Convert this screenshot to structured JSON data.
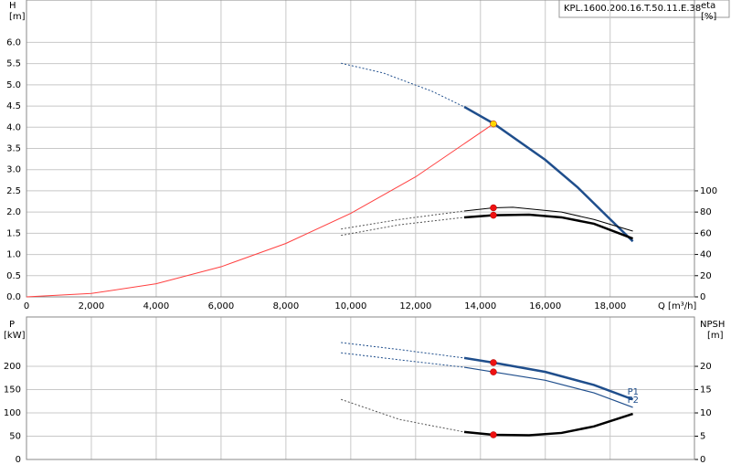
{
  "chart_data": [
    {
      "type": "line",
      "model": "KPL.1600.200.16.T.50.11.E.38",
      "ylabel": "H",
      "yunit": "[m]",
      "y2label": "eta",
      "y2unit": "[%]",
      "xlabel": "Q [m³/h]",
      "xlim": [
        0,
        20600
      ],
      "ylim": [
        0,
        7
      ],
      "y2lim": [
        0,
        280
      ],
      "grid": true,
      "xticks": [
        0,
        {
          "value": 2000,
          "label": "2,000"
        },
        {
          "value": 4000,
          "label": "4,000"
        },
        {
          "value": 6000,
          "label": "6,000"
        },
        {
          "value": 8000,
          "label": "8,000"
        },
        {
          "value": 10000,
          "label": "10,000"
        },
        {
          "value": 12000,
          "label": "12,000"
        },
        {
          "value": 14000,
          "label": "14,000"
        },
        {
          "value": 16000,
          "label": "16,000"
        },
        {
          "value": 18000,
          "label": "18,000"
        }
      ],
      "yticks": [
        {
          "value": 0,
          "label": "0.0"
        },
        {
          "value": 0.5,
          "label": "0.5"
        },
        {
          "value": 1,
          "label": "1.0"
        },
        {
          "value": 1.5,
          "label": "1.5"
        },
        {
          "value": 2,
          "label": "2.0"
        },
        {
          "value": 2.5,
          "label": "2.5"
        },
        {
          "value": 3,
          "label": "3.0"
        },
        {
          "value": 3.5,
          "label": "3.5"
        },
        {
          "value": 4,
          "label": "4.0"
        },
        {
          "value": 4.5,
          "label": "4.5"
        },
        {
          "value": 5,
          "label": "5.0"
        },
        {
          "value": 5.5,
          "label": "5.5"
        },
        {
          "value": 6,
          "label": "6.0"
        }
      ],
      "y2ticks": [
        0,
        20,
        40,
        60,
        80,
        100
      ],
      "series": [
        {
          "color": "#1f4e8c",
          "width": 1,
          "dash": true,
          "axis": "y",
          "x": [
            9700,
            11000,
            12500,
            13500
          ],
          "values": [
            5.51,
            5.28,
            4.85,
            4.48
          ]
        },
        {
          "color": "#1f4e8c",
          "width": 2.5,
          "dash": false,
          "axis": "y",
          "x": [
            13500,
            14400,
            16000,
            17000,
            18000,
            18700
          ],
          "values": [
            4.48,
            4.09,
            3.23,
            2.58,
            1.83,
            1.31
          ]
        },
        {
          "color": "#ff4040",
          "width": 1,
          "dash": false,
          "axis": "y",
          "x": [
            0,
            2000,
            4000,
            6000,
            8000,
            10000,
            12000,
            14400
          ],
          "values": [
            0,
            0.08,
            0.31,
            0.71,
            1.26,
            1.97,
            2.83,
            4.08
          ]
        },
        {
          "color": "#555555",
          "width": 1,
          "dash": true,
          "axis": "y2",
          "x": [
            9700,
            11500,
            13500
          ],
          "values": [
            64,
            73,
            81
          ]
        },
        {
          "color": "#000000",
          "width": 1,
          "dash": false,
          "axis": "y2",
          "x": [
            13500,
            14400,
            15000,
            16500,
            17500,
            18700
          ],
          "values": [
            81,
            84,
            84.5,
            80,
            73,
            62
          ]
        },
        {
          "color": "#555555",
          "width": 1,
          "dash": true,
          "axis": "y2",
          "x": [
            9700,
            11500,
            13500
          ],
          "values": [
            58,
            68,
            75
          ]
        },
        {
          "color": "#000000",
          "width": 2.5,
          "dash": false,
          "axis": "y2",
          "x": [
            13500,
            14400,
            15500,
            16500,
            17500,
            18700
          ],
          "values": [
            75,
            77,
            77.5,
            75,
            69,
            55
          ]
        }
      ],
      "markers": [
        {
          "x": 14400,
          "y": 4.08,
          "axis": "y",
          "color": "#ffd700"
        },
        {
          "x": 14400,
          "y": 84,
          "axis": "y2",
          "color": "#ee1111"
        },
        {
          "x": 14400,
          "y": 77,
          "axis": "y2",
          "color": "#ee1111"
        }
      ]
    },
    {
      "type": "line",
      "ylabel": "P",
      "yunit": "[kW]",
      "y2label": "NPSH",
      "y2unit": "[m]",
      "xlim": [
        0,
        20600
      ],
      "ylim": [
        0,
        306
      ],
      "y2lim": [
        0,
        30.6
      ],
      "grid": true,
      "yticks": [
        0,
        50,
        100,
        150,
        200
      ],
      "y2ticks": [
        0,
        5,
        10,
        15,
        20
      ],
      "series": [
        {
          "color": "#1f4e8c",
          "width": 1,
          "dash": true,
          "axis": "y",
          "x": [
            9700,
            11500,
            13500
          ],
          "values": [
            251,
            236,
            218
          ]
        },
        {
          "name": "P1",
          "color": "#1f4e8c",
          "width": 2.5,
          "dash": false,
          "axis": "y",
          "x": [
            13500,
            14400,
            16000,
            17500,
            18700
          ],
          "values": [
            218,
            208,
            188,
            160,
            129
          ]
        },
        {
          "color": "#1f4e8c",
          "width": 1,
          "dash": true,
          "axis": "y",
          "x": [
            9700,
            11500,
            13500
          ],
          "values": [
            229,
            214,
            198
          ]
        },
        {
          "name": "P2",
          "color": "#1f4e8c",
          "width": 1.2,
          "dash": false,
          "axis": "y",
          "x": [
            13500,
            14400,
            16000,
            17500,
            18700
          ],
          "values": [
            198,
            188,
            170,
            143,
            112
          ]
        },
        {
          "color": "#555555",
          "width": 1,
          "dash": true,
          "axis": "y2",
          "x": [
            9700,
            11500,
            13500
          ],
          "values": [
            12.9,
            8.6,
            5.9
          ]
        },
        {
          "color": "#000000",
          "width": 2.5,
          "dash": false,
          "axis": "y2",
          "x": [
            13500,
            14400,
            15500,
            16500,
            17500,
            18700
          ],
          "values": [
            5.9,
            5.3,
            5.2,
            5.7,
            7.1,
            9.8
          ]
        }
      ],
      "markers": [
        {
          "x": 14400,
          "y": 208,
          "axis": "y",
          "color": "#ee1111"
        },
        {
          "x": 14400,
          "y": 188,
          "axis": "y",
          "color": "#ee1111"
        },
        {
          "x": 14400,
          "y": 5.3,
          "axis": "y2",
          "color": "#ee1111"
        }
      ]
    }
  ]
}
